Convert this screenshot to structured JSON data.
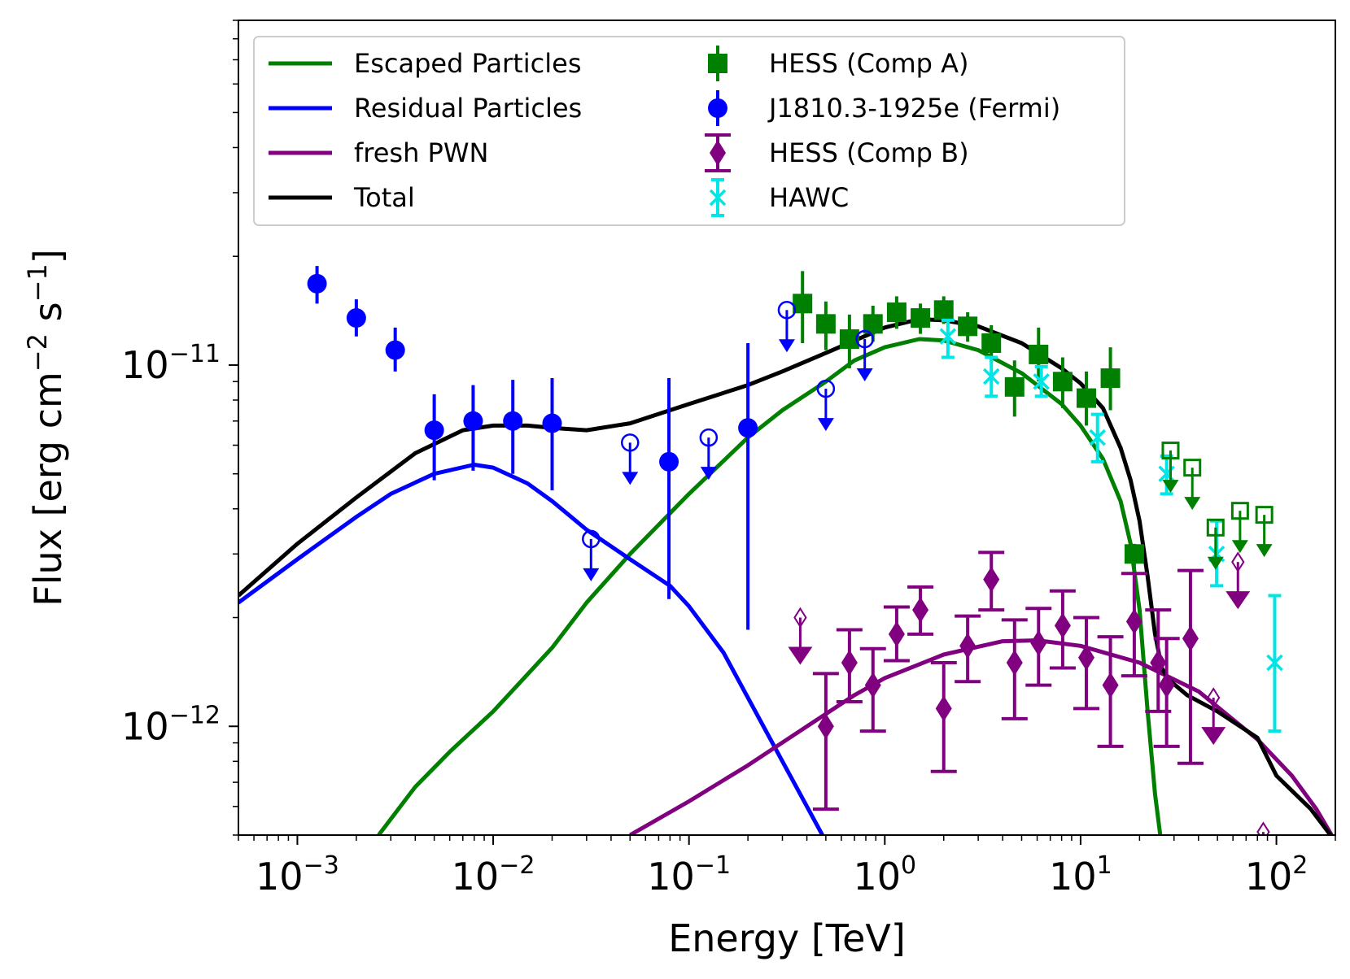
{
  "chart_data": {
    "type": "scatter",
    "xlabel": "Energy [TeV]",
    "ylabel_parts": [
      "Flux [erg cm",
      "−2",
      " s",
      "−1",
      "]"
    ],
    "xscale": "log",
    "yscale": "log",
    "xlim": [
      0.0005,
      200
    ],
    "ylim": [
      5e-13,
      9e-11
    ],
    "x_ticks": [
      {
        "value": 0.001,
        "base": "10",
        "exp": "−3"
      },
      {
        "value": 0.01,
        "base": "10",
        "exp": "−2"
      },
      {
        "value": 0.1,
        "base": "10",
        "exp": "−1"
      },
      {
        "value": 1,
        "base": "10",
        "exp": "0"
      },
      {
        "value": 10,
        "base": "10",
        "exp": "1"
      },
      {
        "value": 100,
        "base": "10",
        "exp": "2"
      }
    ],
    "y_ticks": [
      {
        "value": 1e-12,
        "base": "10",
        "exp": "−12"
      },
      {
        "value": 1e-11,
        "base": "10",
        "exp": "−11"
      }
    ],
    "legend": [
      {
        "label": "Escaped Particles",
        "color": "#008000",
        "kind": "line"
      },
      {
        "label": "Residual Particles",
        "color": "#0000ff",
        "kind": "line"
      },
      {
        "label": "fresh PWN",
        "color": "#800080",
        "kind": "line"
      },
      {
        "label": "Total",
        "color": "#000000",
        "kind": "line"
      },
      {
        "label": "HESS (Comp A)",
        "color": "#008000",
        "kind": "square"
      },
      {
        "label": "J1810.3-1925e (Fermi)",
        "color": "#0000ff",
        "kind": "circle"
      },
      {
        "label": "HESS (Comp B)",
        "color": "#800080",
        "kind": "diamond"
      },
      {
        "label": "HAWC",
        "color": "#00e5e5",
        "kind": "x"
      }
    ],
    "lines": [
      {
        "name": "Escaped Particles",
        "color": "#008000",
        "x": [
          0.0026,
          0.004,
          0.006,
          0.01,
          0.02,
          0.03,
          0.05,
          0.1,
          0.2,
          0.3,
          0.5,
          0.7,
          1,
          1.5,
          2,
          3,
          5,
          8,
          10,
          13,
          16,
          18,
          20,
          22,
          24,
          25.5
        ],
        "y": [
          5e-13,
          6.8e-13,
          8.5e-13,
          1.1e-12,
          1.65e-12,
          2.2e-12,
          3e-12,
          4.4e-12,
          6.3e-12,
          7.5e-12,
          9e-12,
          1.03e-11,
          1.12e-11,
          1.18e-11,
          1.17e-11,
          1.1e-11,
          9.5e-12,
          7.8e-12,
          6.8e-12,
          5.5e-12,
          4.2e-12,
          3.2e-12,
          2.1e-12,
          1.1e-12,
          6.5e-13,
          5e-13
        ]
      },
      {
        "name": "Residual Particles",
        "color": "#0000ff",
        "x": [
          0.0005,
          0.001,
          0.002,
          0.003,
          0.005,
          0.008,
          0.01,
          0.015,
          0.02,
          0.03,
          0.05,
          0.08,
          0.1,
          0.15,
          0.2,
          0.3,
          0.4,
          0.5
        ],
        "y": [
          2.2e-12,
          2.9e-12,
          3.8e-12,
          4.4e-12,
          5e-12,
          5.3e-12,
          5.2e-12,
          4.7e-12,
          4.2e-12,
          3.5e-12,
          2.9e-12,
          2.45e-12,
          2.15e-12,
          1.6e-12,
          1.2e-12,
          8e-13,
          6e-13,
          4.8e-13
        ]
      },
      {
        "name": "fresh PWN",
        "color": "#800080",
        "x": [
          0.05,
          0.1,
          0.2,
          0.4,
          0.7,
          1,
          2,
          4,
          6,
          10,
          20,
          40,
          80,
          120,
          160,
          200
        ],
        "y": [
          5e-13,
          6.2e-13,
          7.8e-13,
          1e-12,
          1.22e-12,
          1.36e-12,
          1.58e-12,
          1.72e-12,
          1.73e-12,
          1.67e-12,
          1.5e-12,
          1.25e-12,
          9.2e-13,
          7.3e-13,
          5.9e-13,
          4.8e-13
        ]
      },
      {
        "name": "Total",
        "color": "#000000",
        "x": [
          0.0005,
          0.001,
          0.002,
          0.004,
          0.007,
          0.01,
          0.015,
          0.02,
          0.03,
          0.05,
          0.1,
          0.2,
          0.3,
          0.5,
          1,
          1.5,
          2,
          3,
          5,
          8,
          10,
          13,
          16,
          18,
          20,
          22,
          24,
          26,
          28,
          35,
          50,
          80,
          100,
          150,
          200
        ],
        "y": [
          2.3e-12,
          3.2e-12,
          4.3e-12,
          5.7e-12,
          6.6e-12,
          6.8e-12,
          6.8e-12,
          6.7e-12,
          6.6e-12,
          6.9e-12,
          7.8e-12,
          8.8e-12,
          9.6e-12,
          1.08e-11,
          1.27e-11,
          1.34e-11,
          1.33e-11,
          1.28e-11,
          1.15e-11,
          9.8e-12,
          8.9e-12,
          7.6e-12,
          5.9e-12,
          4.8e-12,
          3.7e-12,
          2.6e-12,
          1.8e-12,
          1.45e-12,
          1.35e-12,
          1.22e-12,
          1.1e-12,
          9.3e-13,
          7.3e-13,
          5.9e-13,
          4.8e-13
        ]
      }
    ],
    "points": [
      {
        "series": "J1810.3-1925e (Fermi)",
        "color": "#0000ff",
        "marker": "circle",
        "x": 0.00126,
        "y": 1.68e-11,
        "lo": 1.48e-11,
        "hi": 1.88e-11
      },
      {
        "series": "J1810.3-1925e (Fermi)",
        "color": "#0000ff",
        "marker": "circle",
        "x": 0.002,
        "y": 1.35e-11,
        "lo": 1.2e-11,
        "hi": 1.52e-11
      },
      {
        "series": "J1810.3-1925e (Fermi)",
        "color": "#0000ff",
        "marker": "circle",
        "x": 0.00316,
        "y": 1.1e-11,
        "lo": 9.6e-12,
        "hi": 1.27e-11
      },
      {
        "series": "J1810.3-1925e (Fermi)",
        "color": "#0000ff",
        "marker": "circle",
        "x": 0.005,
        "y": 6.6e-12,
        "lo": 4.8e-12,
        "hi": 8.3e-12
      },
      {
        "series": "J1810.3-1925e (Fermi)",
        "color": "#0000ff",
        "marker": "circle",
        "x": 0.0079,
        "y": 7e-12,
        "lo": 5.1e-12,
        "hi": 8.8e-12
      },
      {
        "series": "J1810.3-1925e (Fermi)",
        "color": "#0000ff",
        "marker": "circle",
        "x": 0.0126,
        "y": 7e-12,
        "lo": 5e-12,
        "hi": 9.1e-12
      },
      {
        "series": "J1810.3-1925e (Fermi)",
        "color": "#0000ff",
        "marker": "circle",
        "x": 0.02,
        "y": 6.9e-12,
        "lo": 4.5e-12,
        "hi": 9.2e-12
      },
      {
        "series": "J1810.3-1925e (Fermi)",
        "color": "#0000ff",
        "marker": "circle",
        "x": 0.079,
        "y": 5.4e-12,
        "lo": 2.25e-12,
        "hi": 9.2e-12
      },
      {
        "series": "J1810.3-1925e (Fermi)",
        "color": "#0000ff",
        "marker": "circle",
        "x": 0.2,
        "y": 6.7e-12,
        "lo": 1.85e-12,
        "hi": 1.15e-11
      },
      {
        "series": "HESS (Comp A)",
        "color": "#008000",
        "marker": "square",
        "x": 0.38,
        "y": 1.48e-11,
        "lo": 1.15e-11,
        "hi": 1.82e-11
      },
      {
        "series": "HESS (Comp A)",
        "color": "#008000",
        "marker": "square",
        "x": 0.5,
        "y": 1.3e-11,
        "lo": 1.1e-11,
        "hi": 1.5e-11
      },
      {
        "series": "HESS (Comp A)",
        "color": "#008000",
        "marker": "square",
        "x": 0.66,
        "y": 1.18e-11,
        "lo": 9.8e-12,
        "hi": 1.38e-11
      },
      {
        "series": "HESS (Comp A)",
        "color": "#008000",
        "marker": "square",
        "x": 0.87,
        "y": 1.3e-11,
        "lo": 1.16e-11,
        "hi": 1.46e-11
      },
      {
        "series": "HESS (Comp A)",
        "color": "#008000",
        "marker": "square",
        "x": 1.15,
        "y": 1.4e-11,
        "lo": 1.26e-11,
        "hi": 1.55e-11
      },
      {
        "series": "HESS (Comp A)",
        "color": "#008000",
        "marker": "square",
        "x": 1.52,
        "y": 1.35e-11,
        "lo": 1.22e-11,
        "hi": 1.48e-11
      },
      {
        "series": "HESS (Comp A)",
        "color": "#008000",
        "marker": "square",
        "x": 2.0,
        "y": 1.42e-11,
        "lo": 1.3e-11,
        "hi": 1.55e-11
      },
      {
        "series": "HESS (Comp A)",
        "color": "#008000",
        "marker": "square",
        "x": 2.65,
        "y": 1.28e-11,
        "lo": 1.16e-11,
        "hi": 1.4e-11
      },
      {
        "series": "HESS (Comp A)",
        "color": "#008000",
        "marker": "square",
        "x": 3.5,
        "y": 1.15e-11,
        "lo": 1.02e-11,
        "hi": 1.29e-11
      },
      {
        "series": "HESS (Comp A)",
        "color": "#008000",
        "marker": "square",
        "x": 4.6,
        "y": 8.7e-12,
        "lo": 7.2e-12,
        "hi": 1.03e-11
      },
      {
        "series": "HESS (Comp A)",
        "color": "#008000",
        "marker": "square",
        "x": 6.1,
        "y": 1.07e-11,
        "lo": 9e-12,
        "hi": 1.27e-11
      },
      {
        "series": "HESS (Comp A)",
        "color": "#008000",
        "marker": "square",
        "x": 8.1,
        "y": 9e-12,
        "lo": 7.6e-12,
        "hi": 1.05e-11
      },
      {
        "series": "HESS (Comp A)",
        "color": "#008000",
        "marker": "square",
        "x": 10.7,
        "y": 8.1e-12,
        "lo": 6.8e-12,
        "hi": 9.6e-12
      },
      {
        "series": "HESS (Comp A)",
        "color": "#008000",
        "marker": "square",
        "x": 14.2,
        "y": 9.2e-12,
        "lo": 7.5e-12,
        "hi": 1.12e-11
      },
      {
        "series": "HESS (Comp A)",
        "color": "#008000",
        "marker": "square",
        "x": 18.8,
        "y": 3e-12,
        "lo": 2.2e-12,
        "hi": 3.2e-12
      },
      {
        "series": "HESS (Comp B)",
        "color": "#800080",
        "marker": "diamond",
        "x": 0.5,
        "y": 1e-12,
        "lo": 5.9e-13,
        "hi": 1.4e-12
      },
      {
        "series": "HESS (Comp B)",
        "color": "#800080",
        "marker": "diamond",
        "x": 0.66,
        "y": 1.5e-12,
        "lo": 1.17e-12,
        "hi": 1.85e-12
      },
      {
        "series": "HESS (Comp B)",
        "color": "#800080",
        "marker": "diamond",
        "x": 0.87,
        "y": 1.3e-12,
        "lo": 9.7e-13,
        "hi": 1.64e-12
      },
      {
        "series": "HESS (Comp B)",
        "color": "#800080",
        "marker": "diamond",
        "x": 1.15,
        "y": 1.8e-12,
        "lo": 1.52e-12,
        "hi": 2.14e-12
      },
      {
        "series": "HESS (Comp B)",
        "color": "#800080",
        "marker": "diamond",
        "x": 1.52,
        "y": 2.1e-12,
        "lo": 1.8e-12,
        "hi": 2.43e-12
      },
      {
        "series": "HESS (Comp B)",
        "color": "#800080",
        "marker": "diamond",
        "x": 2.0,
        "y": 1.12e-12,
        "lo": 7.5e-13,
        "hi": 1.5e-12
      },
      {
        "series": "HESS (Comp B)",
        "color": "#800080",
        "marker": "diamond",
        "x": 2.65,
        "y": 1.67e-12,
        "lo": 1.33e-12,
        "hi": 2.02e-12
      },
      {
        "series": "HESS (Comp B)",
        "color": "#800080",
        "marker": "diamond",
        "x": 3.5,
        "y": 2.55e-12,
        "lo": 2.1e-12,
        "hi": 3.03e-12
      },
      {
        "series": "HESS (Comp B)",
        "color": "#800080",
        "marker": "diamond",
        "x": 4.6,
        "y": 1.5e-12,
        "lo": 1.05e-12,
        "hi": 1.97e-12
      },
      {
        "series": "HESS (Comp B)",
        "color": "#800080",
        "marker": "diamond",
        "x": 6.1,
        "y": 1.7e-12,
        "lo": 1.3e-12,
        "hi": 2.12e-12
      },
      {
        "series": "HESS (Comp B)",
        "color": "#800080",
        "marker": "diamond",
        "x": 8.1,
        "y": 1.9e-12,
        "lo": 1.45e-12,
        "hi": 2.37e-12
      },
      {
        "series": "HESS (Comp B)",
        "color": "#800080",
        "marker": "diamond",
        "x": 10.7,
        "y": 1.55e-12,
        "lo": 1.12e-12,
        "hi": 2e-12
      },
      {
        "series": "HESS (Comp B)",
        "color": "#800080",
        "marker": "diamond",
        "x": 14.2,
        "y": 1.3e-12,
        "lo": 8.8e-13,
        "hi": 1.77e-12
      },
      {
        "series": "HESS (Comp B)",
        "color": "#800080",
        "marker": "diamond",
        "x": 18.8,
        "y": 1.95e-12,
        "lo": 1.38e-12,
        "hi": 2.65e-12
      },
      {
        "series": "HESS (Comp B)",
        "color": "#800080",
        "marker": "diamond",
        "x": 24.9,
        "y": 1.5e-12,
        "lo": 1.1e-12,
        "hi": 2.1e-12
      },
      {
        "series": "HESS (Comp B)",
        "color": "#800080",
        "marker": "diamond",
        "x": 27.5,
        "y": 1.3e-12,
        "lo": 8.8e-13,
        "hi": 1.75e-12
      },
      {
        "series": "HESS (Comp B)",
        "color": "#800080",
        "marker": "diamond",
        "x": 36.4,
        "y": 1.75e-12,
        "lo": 7.9e-13,
        "hi": 2.7e-12
      },
      {
        "series": "HAWC",
        "color": "#00e5e5",
        "marker": "x",
        "x": 2.1,
        "y": 1.2e-11,
        "lo": 1.05e-11,
        "hi": 1.33e-11
      },
      {
        "series": "HAWC",
        "color": "#00e5e5",
        "marker": "x",
        "x": 3.5,
        "y": 9.3e-12,
        "lo": 8.2e-12,
        "hi": 1.05e-11
      },
      {
        "series": "HAWC",
        "color": "#00e5e5",
        "marker": "x",
        "x": 6.3,
        "y": 9e-12,
        "lo": 8.2e-12,
        "hi": 9.9e-12
      },
      {
        "series": "HAWC",
        "color": "#00e5e5",
        "marker": "x",
        "x": 12.2,
        "y": 6.3e-12,
        "lo": 5.4e-12,
        "hi": 7.3e-12
      },
      {
        "series": "HAWC",
        "color": "#00e5e5",
        "marker": "x",
        "x": 27.5,
        "y": 5e-12,
        "lo": 4.4e-12,
        "hi": 5.6e-12
      },
      {
        "series": "HAWC",
        "color": "#00e5e5",
        "marker": "x",
        "x": 49.5,
        "y": 3e-12,
        "lo": 2.45e-12,
        "hi": 3.7e-12
      },
      {
        "series": "HAWC",
        "color": "#00e5e5",
        "marker": "x",
        "x": 98,
        "y": 1.5e-12,
        "lo": 9.7e-13,
        "hi": 2.3e-12
      }
    ],
    "upper_limits": [
      {
        "series": "J1810.3-1925e (Fermi)",
        "color": "#0000ff",
        "marker": "circle",
        "x": 0.0316,
        "y": 3.3e-12
      },
      {
        "series": "J1810.3-1925e (Fermi)",
        "color": "#0000ff",
        "marker": "circle",
        "x": 0.05,
        "y": 6.1e-12
      },
      {
        "series": "J1810.3-1925e (Fermi)",
        "color": "#0000ff",
        "marker": "circle",
        "x": 0.126,
        "y": 6.3e-12
      },
      {
        "series": "J1810.3-1925e (Fermi)",
        "color": "#0000ff",
        "marker": "circle",
        "x": 0.316,
        "y": 1.42e-11
      },
      {
        "series": "J1810.3-1925e (Fermi)",
        "color": "#0000ff",
        "marker": "circle",
        "x": 0.5,
        "y": 8.6e-12
      },
      {
        "series": "J1810.3-1925e (Fermi)",
        "color": "#0000ff",
        "marker": "circle",
        "x": 0.79,
        "y": 1.18e-11
      },
      {
        "series": "HESS (Comp A)",
        "color": "#008000",
        "marker": "square",
        "x": 28.8,
        "y": 5.8e-12
      },
      {
        "series": "HESS (Comp A)",
        "color": "#008000",
        "marker": "square",
        "x": 37.2,
        "y": 5.2e-12
      },
      {
        "series": "HESS (Comp A)",
        "color": "#008000",
        "marker": "square",
        "x": 48.9,
        "y": 3.55e-12
      },
      {
        "series": "HESS (Comp A)",
        "color": "#008000",
        "marker": "square",
        "x": 65.2,
        "y": 3.95e-12
      },
      {
        "series": "HESS (Comp A)",
        "color": "#008000",
        "marker": "square",
        "x": 86.7,
        "y": 3.85e-12
      },
      {
        "series": "HESS (Comp B)",
        "color": "#800080",
        "marker": "diamond",
        "x": 0.37,
        "y": 2e-12
      },
      {
        "series": "HESS (Comp B)",
        "color": "#800080",
        "marker": "diamond",
        "x": 47.7,
        "y": 1.2e-12
      },
      {
        "series": "HESS (Comp B)",
        "color": "#800080",
        "marker": "diamond",
        "x": 63.6,
        "y": 2.85e-12
      },
      {
        "series": "HESS (Comp B)",
        "color": "#800080",
        "marker": "diamond",
        "x": 85.7,
        "y": 5.1e-13
      }
    ]
  }
}
